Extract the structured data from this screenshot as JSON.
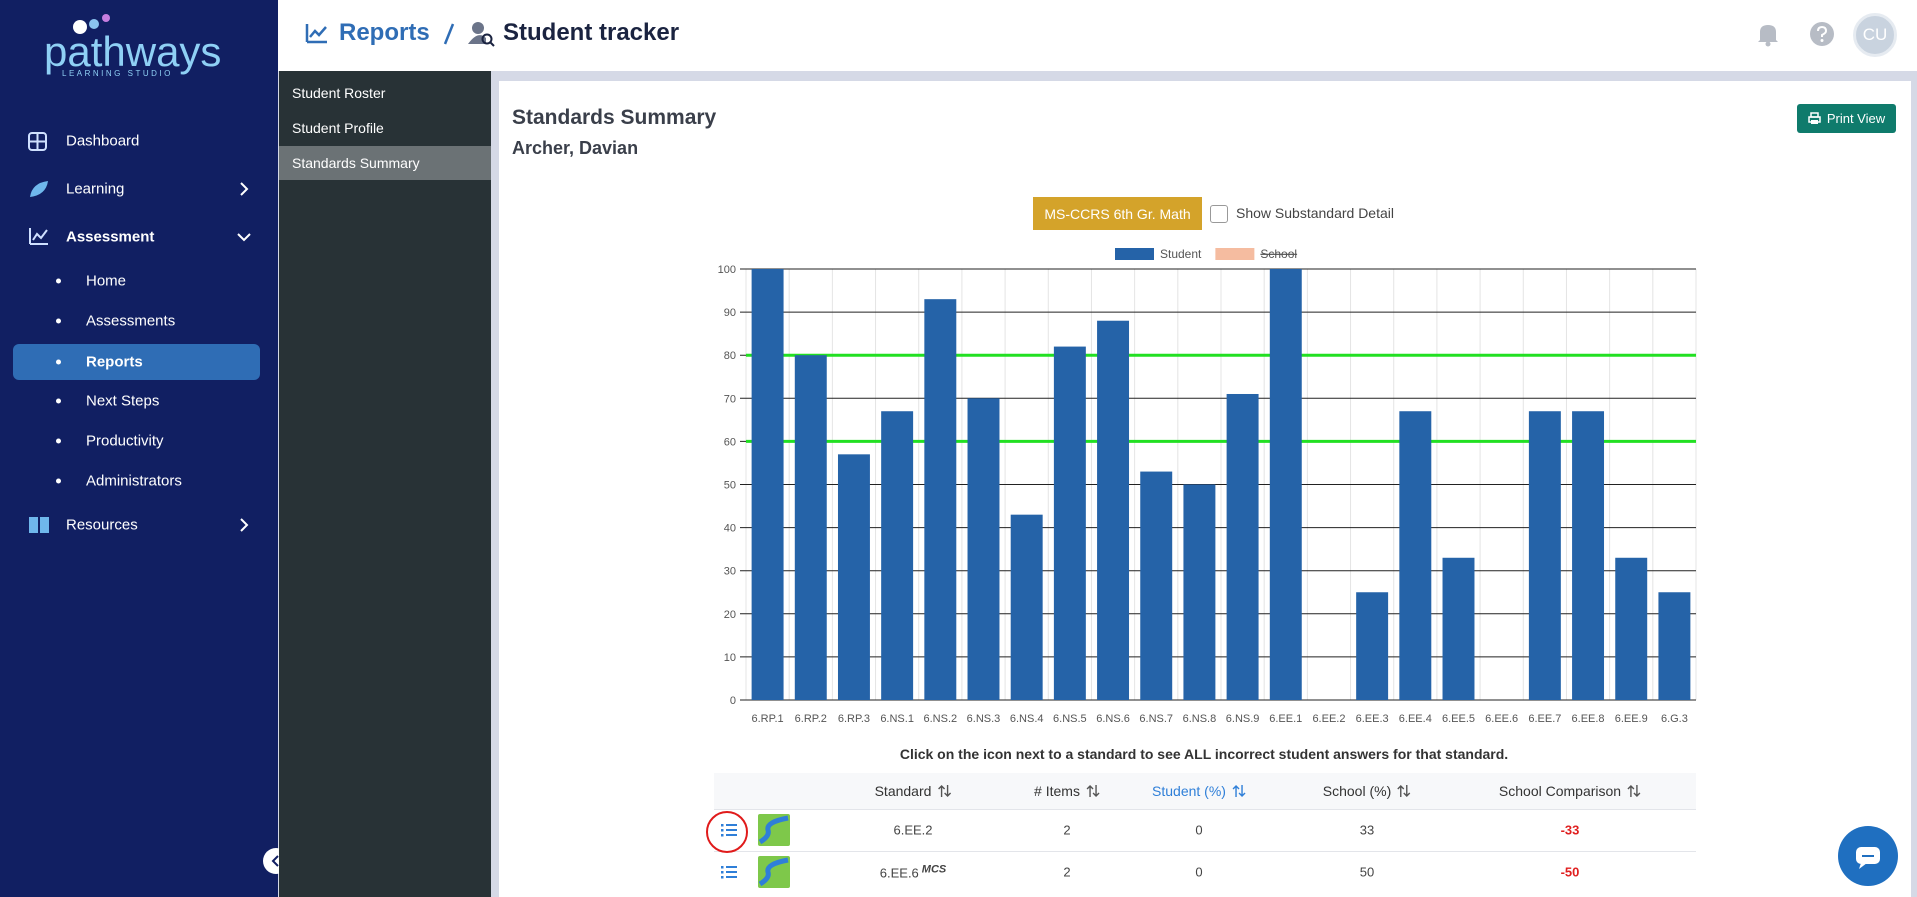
{
  "sidebar": {
    "logo": "pathways",
    "logo_subtitle": "LEARNING STUDIO",
    "nav": [
      "Dashboard",
      "Learning",
      "Assessment",
      "Home",
      "Assessments",
      "Reports",
      "Next Steps",
      "Productivity",
      "Administrators",
      "Resources"
    ]
  },
  "header": {
    "section": "Reports",
    "page": "Student tracker",
    "avatar": "CU"
  },
  "subnav": [
    "Student Roster",
    "Student Profile",
    "Standards Summary"
  ],
  "panel": {
    "title": "Standards Summary",
    "student": "Archer, Davian",
    "print_button": "Print View",
    "standard_set": "MS-CCRS 6th Gr. Math",
    "checkbox_label": "Show Substandard Detail",
    "instruction": "Click on the icon next to a standard to see ALL incorrect student answers for that standard."
  },
  "chart_data": {
    "type": "bar",
    "categories": [
      "6.RP.1",
      "6.RP.2",
      "6.RP.3",
      "6.NS.1",
      "6.NS.2",
      "6.NS.3",
      "6.NS.4",
      "6.NS.5",
      "6.NS.6",
      "6.NS.7",
      "6.NS.8",
      "6.NS.9",
      "6.EE.1",
      "6.EE.2",
      "6.EE.3",
      "6.EE.4",
      "6.EE.5",
      "6.EE.6",
      "6.EE.7",
      "6.EE.8",
      "6.EE.9",
      "6.G.3"
    ],
    "series": [
      {
        "name": "Student",
        "color": "#2563a8",
        "values": [
          100,
          80,
          57,
          67,
          93,
          70,
          43,
          82,
          88,
          53,
          50,
          71,
          100,
          0,
          25,
          67,
          33,
          0,
          67,
          67,
          33,
          25
        ]
      }
    ],
    "hidden_series": [
      {
        "name": "School",
        "color": "#f5bca0"
      }
    ],
    "ylim": [
      0,
      100
    ],
    "yticks": [
      0,
      10,
      20,
      30,
      40,
      50,
      60,
      70,
      80,
      90,
      100
    ],
    "grid": true,
    "reference_lines": {
      "values": [
        80,
        60
      ],
      "color": "#22e022"
    }
  },
  "table": {
    "columns": [
      "Standard",
      "# Items",
      "Student (%)",
      "School (%)",
      "School Comparison"
    ],
    "rows": [
      {
        "standard": "6.EE.2",
        "items": 2,
        "student": 0,
        "school": 33,
        "comparison": -33
      },
      {
        "standard": "6.EE.6",
        "tag": "MCS",
        "items": 2,
        "student": 0,
        "school": 50,
        "comparison": -50
      }
    ]
  }
}
